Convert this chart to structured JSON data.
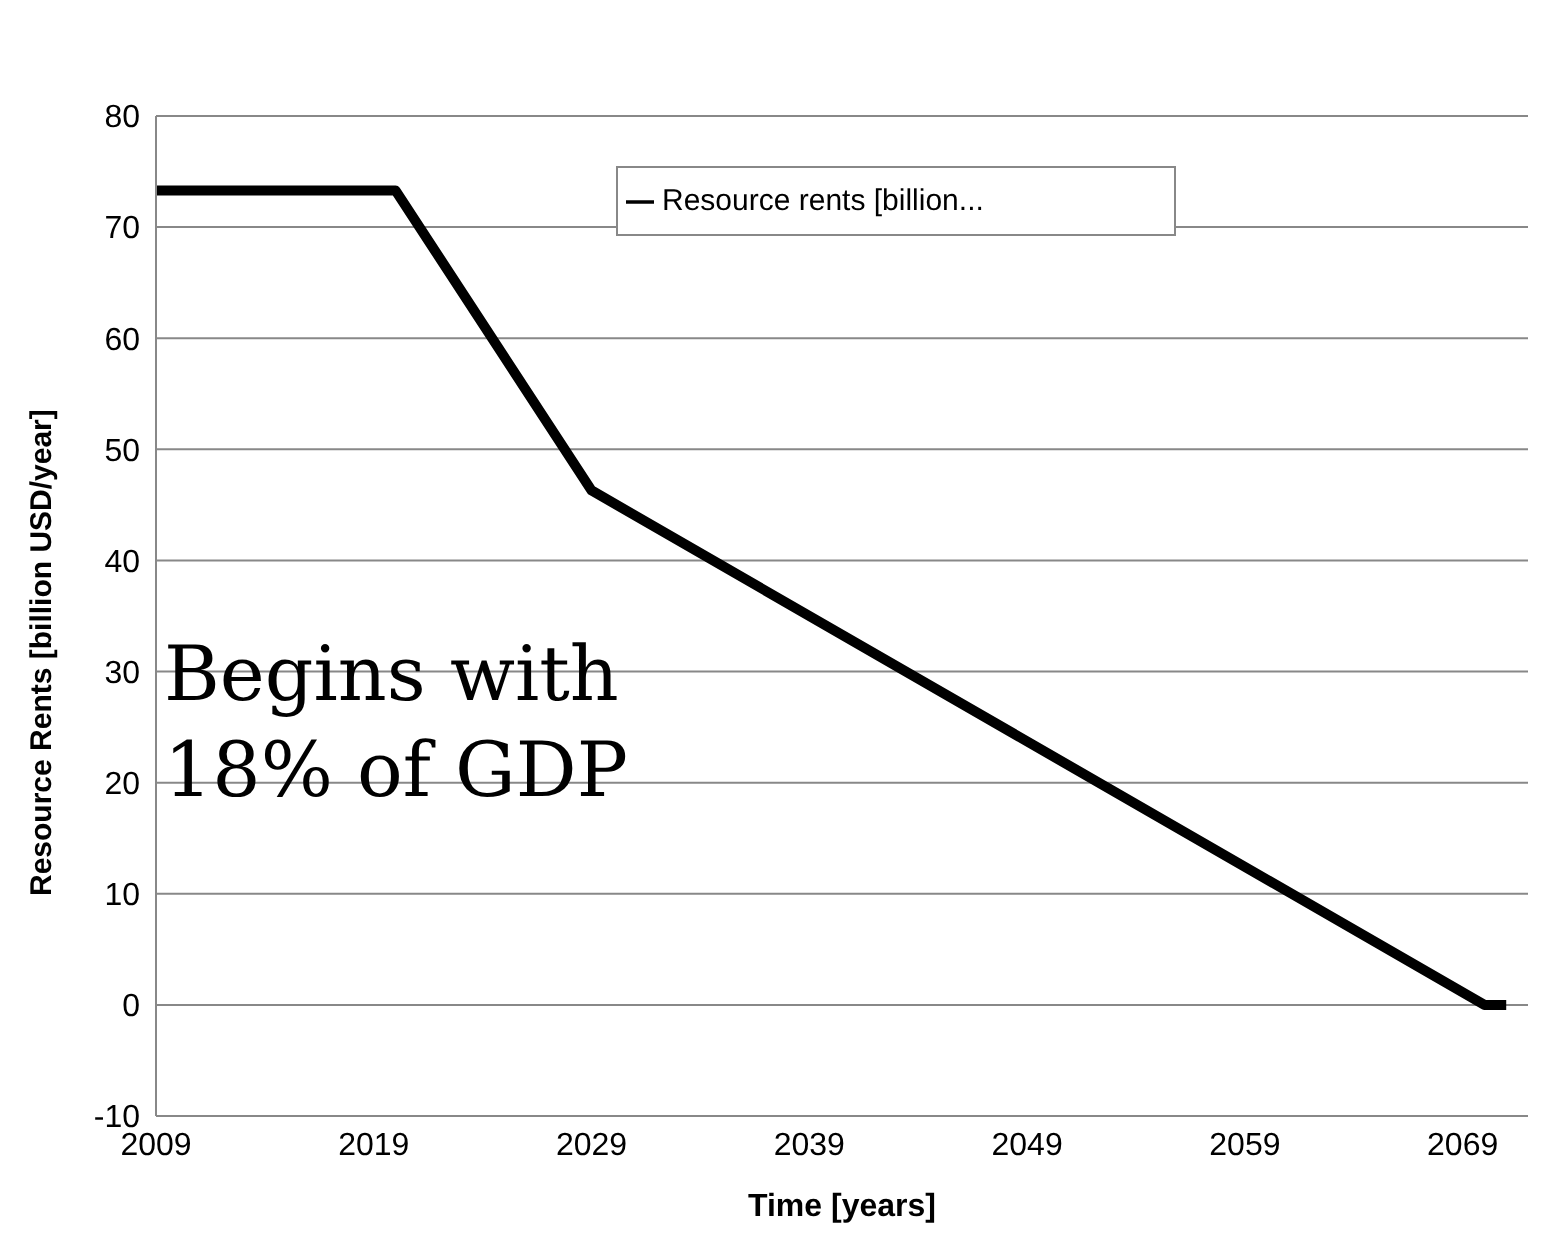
{
  "chart_data": {
    "type": "line",
    "xlabel": "Time [years]",
    "ylabel": "Resource Rents [billion USD/year]",
    "annotations": [
      "Begins with 18% of GDP"
    ],
    "x": [
      2009,
      2020,
      2029,
      2070,
      2071
    ],
    "series": [
      {
        "name": "Resource rents [billion...",
        "color": "#000000",
        "values": [
          73.3,
          73.3,
          46.3,
          0,
          0
        ]
      }
    ],
    "xlim": [
      2009,
      2072
    ],
    "xticks": [
      2009,
      2019,
      2029,
      2039,
      2049,
      2059,
      2069
    ],
    "ylim": [
      -10,
      80
    ],
    "yticks": [
      -10,
      0,
      10,
      20,
      30,
      40,
      50,
      60,
      70,
      80
    ],
    "grid": "y",
    "legend": "top",
    "marker": "none",
    "line_style": "solid"
  }
}
